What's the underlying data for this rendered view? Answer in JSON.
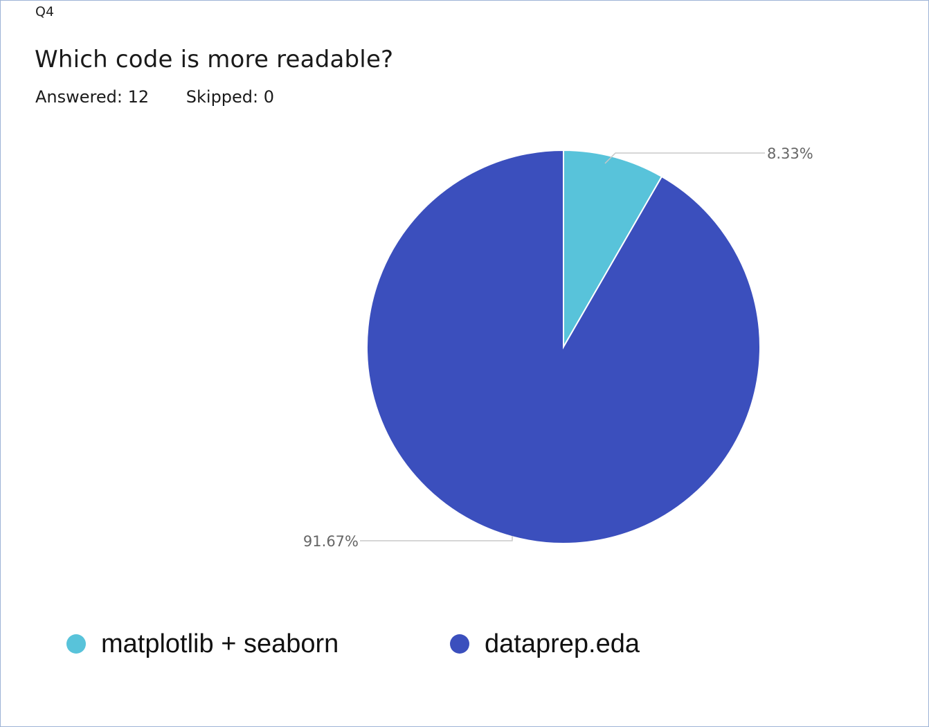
{
  "question": {
    "number": "Q4",
    "title": "Which code is more readable?",
    "answered": "Answered: 12",
    "skipped": "Skipped: 0"
  },
  "colors": {
    "matplotlib": "#58c3da",
    "dataprep": "#3b4fbd",
    "leader": "#c8c8c8",
    "label": "#666666"
  },
  "chart_data": {
    "type": "pie",
    "title": "Which code is more readable?",
    "labels": [
      "matplotlib + seaborn",
      "dataprep.eda"
    ],
    "values": [
      8.33,
      91.67
    ],
    "slice_labels": [
      "8.33%",
      "91.67%"
    ],
    "start_angle_deg": 0,
    "direction": "clockwise",
    "legend_position": "bottom"
  },
  "legend": {
    "items": [
      {
        "label": "matplotlib + seaborn"
      },
      {
        "label": "dataprep.eda"
      }
    ]
  }
}
